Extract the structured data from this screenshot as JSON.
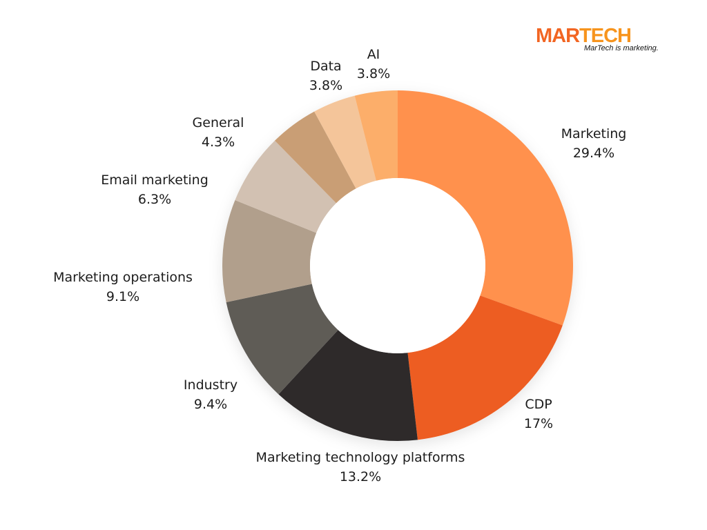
{
  "logo": {
    "brand_part1": "MAR",
    "brand_part2": "TECH",
    "tagline": "MarTech is marketing.",
    "brand_color": "#f26522",
    "brand_color_2": "#f7941d"
  },
  "chart_data": {
    "type": "pie",
    "style": "donut",
    "slices": [
      {
        "label": "Marketing",
        "value": 29.4,
        "display": "29.4%",
        "color": "#ff914d"
      },
      {
        "label": "CDP",
        "value": 17,
        "display": "17%",
        "color": "#ed5d21"
      },
      {
        "label": "Marketing technology platforms",
        "value": 13.2,
        "display": "13.2%",
        "color": "#2d2a2a"
      },
      {
        "label": "Industry",
        "value": 9.4,
        "display": "9.4%",
        "color": "#5f5b57"
      },
      {
        "label": "Marketing operations",
        "value": 9.1,
        "display": "9.1%",
        "color": "#b19f8c"
      },
      {
        "label": "Email marketing",
        "value": 6.3,
        "display": "6.3%",
        "color": "#d2c1b2"
      },
      {
        "label": "General",
        "value": 4.3,
        "display": "4.3%",
        "color": "#dbb898"
      },
      {
        "label": "Data",
        "value": 3.8,
        "display": "3.8%",
        "color": "#c99e74"
      },
      {
        "label": "AI",
        "value": 3.8,
        "display": "3.8%",
        "color": "#f4c59a"
      }
    ],
    "ai_color_override": "#fcae6b",
    "data_color_override": "#f4c59a",
    "general_color_override": "#c99e74",
    "legend": "labels beside slices"
  }
}
